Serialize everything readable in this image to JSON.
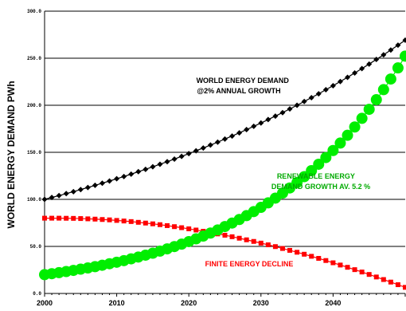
{
  "chart_data": {
    "type": "line",
    "title": "",
    "xlabel": "",
    "ylabel": "WORLD ENERGY DEMAND PWh",
    "xlim": [
      2000,
      2050
    ],
    "ylim": [
      0,
      300
    ],
    "x_ticks": [
      "2000",
      "2010",
      "2020",
      "2030",
      "2040"
    ],
    "y_ticks": [
      "0.0",
      "50.0",
      "100.0",
      "150.0",
      "200.0",
      "250.0",
      "300.0"
    ],
    "grid": true,
    "x": [
      2000,
      2001,
      2002,
      2003,
      2004,
      2005,
      2006,
      2007,
      2008,
      2009,
      2010,
      2011,
      2012,
      2013,
      2014,
      2015,
      2016,
      2017,
      2018,
      2019,
      2020,
      2021,
      2022,
      2023,
      2024,
      2025,
      2026,
      2027,
      2028,
      2029,
      2030,
      2031,
      2032,
      2033,
      2034,
      2035,
      2036,
      2037,
      2038,
      2039,
      2040,
      2041,
      2042,
      2043,
      2044,
      2045,
      2046,
      2047,
      2048,
      2049,
      2050
    ],
    "series": [
      {
        "color": "#000000",
        "marker": "diamond",
        "values": [
          100.0,
          102.0,
          104.0,
          106.1,
          108.2,
          110.4,
          112.6,
          114.9,
          117.2,
          119.5,
          121.9,
          124.3,
          126.8,
          129.4,
          131.9,
          134.6,
          137.3,
          140.0,
          142.8,
          145.7,
          148.6,
          151.6,
          154.6,
          157.7,
          160.8,
          164.1,
          167.3,
          170.7,
          174.1,
          177.6,
          181.1,
          184.8,
          188.5,
          192.2,
          196.1,
          200.0,
          204.0,
          208.1,
          212.2,
          216.5,
          220.8,
          225.2,
          229.7,
          234.3,
          239.0,
          243.8,
          248.7,
          253.6,
          258.7,
          263.9,
          269.2
        ]
      },
      {
        "color": "#00ee00",
        "marker": "circle",
        "values": [
          20.0,
          21.0,
          22.1,
          23.3,
          24.5,
          25.8,
          27.1,
          28.5,
          30.0,
          31.6,
          33.2,
          34.9,
          36.8,
          38.7,
          40.7,
          42.8,
          45.0,
          47.4,
          49.8,
          52.4,
          55.1,
          58.0,
          61.0,
          64.2,
          67.5,
          71.1,
          74.8,
          78.6,
          82.7,
          87.0,
          91.5,
          96.3,
          101.3,
          106.6,
          112.1,
          117.9,
          124.1,
          130.5,
          137.3,
          144.4,
          151.9,
          159.8,
          168.1,
          176.9,
          186.1,
          195.7,
          205.9,
          216.6,
          227.9,
          239.7,
          252.2
        ]
      },
      {
        "color": "#ff0000",
        "marker": "square",
        "values": [
          80.0,
          80.0,
          80.0,
          79.9,
          79.8,
          79.6,
          79.3,
          79.0,
          78.6,
          78.2,
          77.6,
          77.0,
          76.4,
          75.6,
          74.8,
          74.0,
          73.1,
          72.1,
          71.0,
          69.9,
          68.7,
          67.4,
          66.1,
          64.8,
          63.3,
          61.9,
          60.3,
          58.7,
          57.0,
          55.3,
          53.5,
          51.7,
          49.8,
          47.8,
          45.8,
          43.8,
          41.7,
          39.5,
          37.3,
          35.0,
          32.6,
          30.2,
          27.8,
          25.3,
          22.8,
          20.2,
          17.5,
          14.8,
          12.1,
          9.3,
          6.5
        ]
      }
    ],
    "annotations": [
      {
        "lines": [
          "WORLD ENERGY DEMAND",
          "@2% ANNUAL GROWTH"
        ],
        "color": "#000000"
      },
      {
        "lines": [
          "RENEWABLE ENERGY",
          "DEMAND GROWTH AV. 5.2 %"
        ],
        "color": "#00aa00"
      },
      {
        "lines": [
          "FINITE ENERGY DECLINE"
        ],
        "color": "#ff0000"
      }
    ]
  }
}
